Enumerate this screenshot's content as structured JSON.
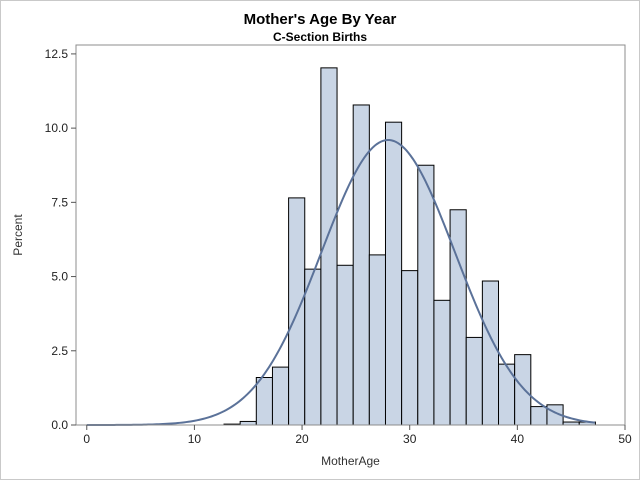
{
  "title": "Mother's Age By Year",
  "subtitle": "C-Section Births",
  "chart_data": {
    "type": "bar",
    "title": "Mother's Age By Year",
    "subtitle": "C-Section Births",
    "xlabel": "MotherAge",
    "ylabel": "Percent",
    "xlim": [
      -1,
      50
    ],
    "ylim": [
      0,
      12.8
    ],
    "xticks": [
      0,
      10,
      20,
      30,
      40,
      50
    ],
    "yticks": [
      0,
      2.5,
      5,
      7.5,
      10,
      12.5
    ],
    "ytick_labels": [
      "0.0",
      "2.5",
      "5.0",
      "7.5",
      "10.0",
      "12.5"
    ],
    "bin_width": 1.5,
    "bin_starts": [
      12.75,
      14.25,
      15.75,
      17.25,
      18.75,
      20.25,
      21.75,
      23.25,
      24.75,
      26.25,
      27.75,
      29.25,
      30.75,
      32.25,
      33.75,
      35.25,
      36.75,
      38.25,
      39.75,
      41.25,
      42.75,
      44.25,
      45.75
    ],
    "values": [
      0.03,
      0.12,
      1.6,
      1.95,
      7.65,
      5.25,
      12.03,
      5.38,
      10.78,
      5.73,
      10.2,
      5.2,
      8.75,
      4.2,
      7.25,
      2.95,
      4.85,
      2.05,
      2.37,
      0.62,
      0.68,
      0.1,
      0.1
    ],
    "normal_curve": {
      "mean": 28,
      "sd": 6.2,
      "peak": 9.6,
      "color": "#5b7299"
    },
    "bar_fill": "#c9d5e5",
    "bar_stroke": "#000000",
    "grid": false,
    "legend": "none"
  }
}
